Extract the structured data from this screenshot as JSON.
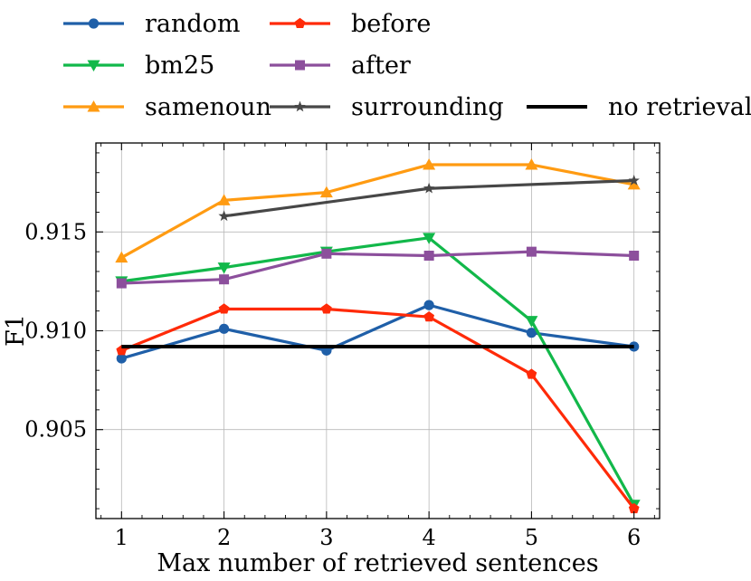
{
  "chart_data": {
    "type": "line",
    "title": "",
    "xlabel": "Max number of retrieved sentences",
    "ylabel": "F1",
    "x": [
      1,
      2,
      3,
      4,
      5,
      6
    ],
    "xlim": [
      0.75,
      6.25
    ],
    "ylim": [
      0.9005,
      0.9195
    ],
    "x_ticks": [
      1,
      2,
      3,
      4,
      5,
      6
    ],
    "x_tick_labels": [
      "1",
      "2",
      "3",
      "4",
      "5",
      "6"
    ],
    "y_ticks": [
      0.905,
      0.91,
      0.915
    ],
    "y_tick_labels": [
      "0.905",
      "0.910",
      "0.915"
    ],
    "grid": true,
    "legend_position": "top",
    "series": [
      {
        "name": "random",
        "color": "#1f5fa8",
        "marker": "circle",
        "x": [
          1,
          2,
          3,
          4,
          5,
          6
        ],
        "values": [
          0.9086,
          0.9101,
          0.909,
          0.9113,
          0.9099,
          0.9092
        ]
      },
      {
        "name": "bm25",
        "color": "#12b84a",
        "marker": "triangle-down",
        "x": [
          1,
          2,
          3,
          4,
          5,
          6
        ],
        "values": [
          0.9125,
          0.9132,
          0.914,
          0.9147,
          0.9105,
          0.9012
        ]
      },
      {
        "name": "samenoun",
        "color": "#ff9b12",
        "marker": "triangle-up",
        "x": [
          1,
          2,
          3,
          4,
          5,
          6
        ],
        "values": [
          0.9137,
          0.9166,
          0.917,
          0.9184,
          0.9184,
          0.9174
        ]
      },
      {
        "name": "before",
        "color": "#ff2a08",
        "marker": "pentagon",
        "x": [
          1,
          2,
          3,
          4,
          5,
          6
        ],
        "values": [
          0.909,
          0.9111,
          0.9111,
          0.9107,
          0.9078,
          0.901
        ]
      },
      {
        "name": "after",
        "color": "#8c4f9c",
        "marker": "square",
        "x": [
          1,
          2,
          3,
          4,
          5,
          6
        ],
        "values": [
          0.9124,
          0.9126,
          0.9139,
          0.9138,
          0.914,
          0.9138
        ]
      },
      {
        "name": "surrounding",
        "color": "#474747",
        "marker": "star",
        "x": [
          2,
          4,
          6
        ],
        "values": [
          0.9158,
          0.9172,
          0.9176
        ]
      },
      {
        "name": "no retrieval",
        "color": "#000000",
        "marker": "none",
        "x": [
          1,
          6
        ],
        "values": [
          0.9092,
          0.9092
        ]
      }
    ]
  }
}
